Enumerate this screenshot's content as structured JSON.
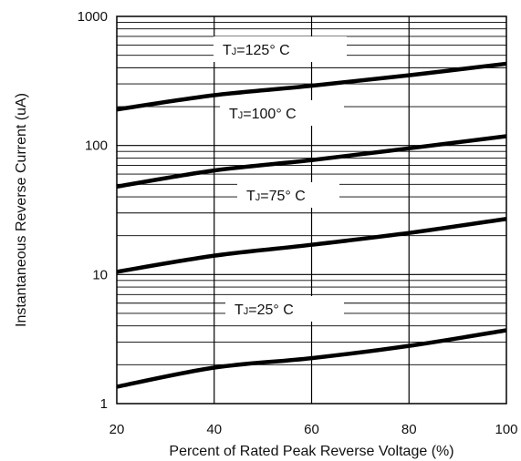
{
  "chart_data": {
    "type": "line",
    "xlabel": "Percent of Rated Peak Reverse Voltage (%)",
    "ylabel": "Instantaneous Reverse Current (uA)",
    "x_scale": "linear",
    "y_scale": "log",
    "xlim": [
      20,
      100
    ],
    "ylim": [
      1,
      1000
    ],
    "x_ticks": [
      "20",
      "40",
      "60",
      "80",
      "100"
    ],
    "y_ticks": [
      "1",
      "10",
      "100",
      "1000"
    ],
    "grid": true,
    "series": [
      {
        "label_prefix": "T",
        "label_sub": "J",
        "label_suffix": "=125° C",
        "x": [
          20,
          40,
          60,
          80,
          100
        ],
        "y": [
          190,
          245,
          290,
          350,
          430
        ]
      },
      {
        "label_prefix": "T",
        "label_sub": "J",
        "label_suffix": "=100° C",
        "x": [
          20,
          40,
          60,
          80,
          100
        ],
        "y": [
          48,
          64,
          77,
          95,
          118
        ]
      },
      {
        "label_prefix": "T",
        "label_sub": "J",
        "label_suffix": "=75° C",
        "x": [
          20,
          40,
          60,
          80,
          100
        ],
        "y": [
          10.5,
          14,
          17,
          21,
          27
        ]
      },
      {
        "label_prefix": "T",
        "label_sub": "J",
        "label_suffix": "=25° C",
        "x": [
          20,
          40,
          60,
          80,
          100
        ],
        "y": [
          1.35,
          1.9,
          2.25,
          2.8,
          3.7
        ]
      }
    ]
  }
}
